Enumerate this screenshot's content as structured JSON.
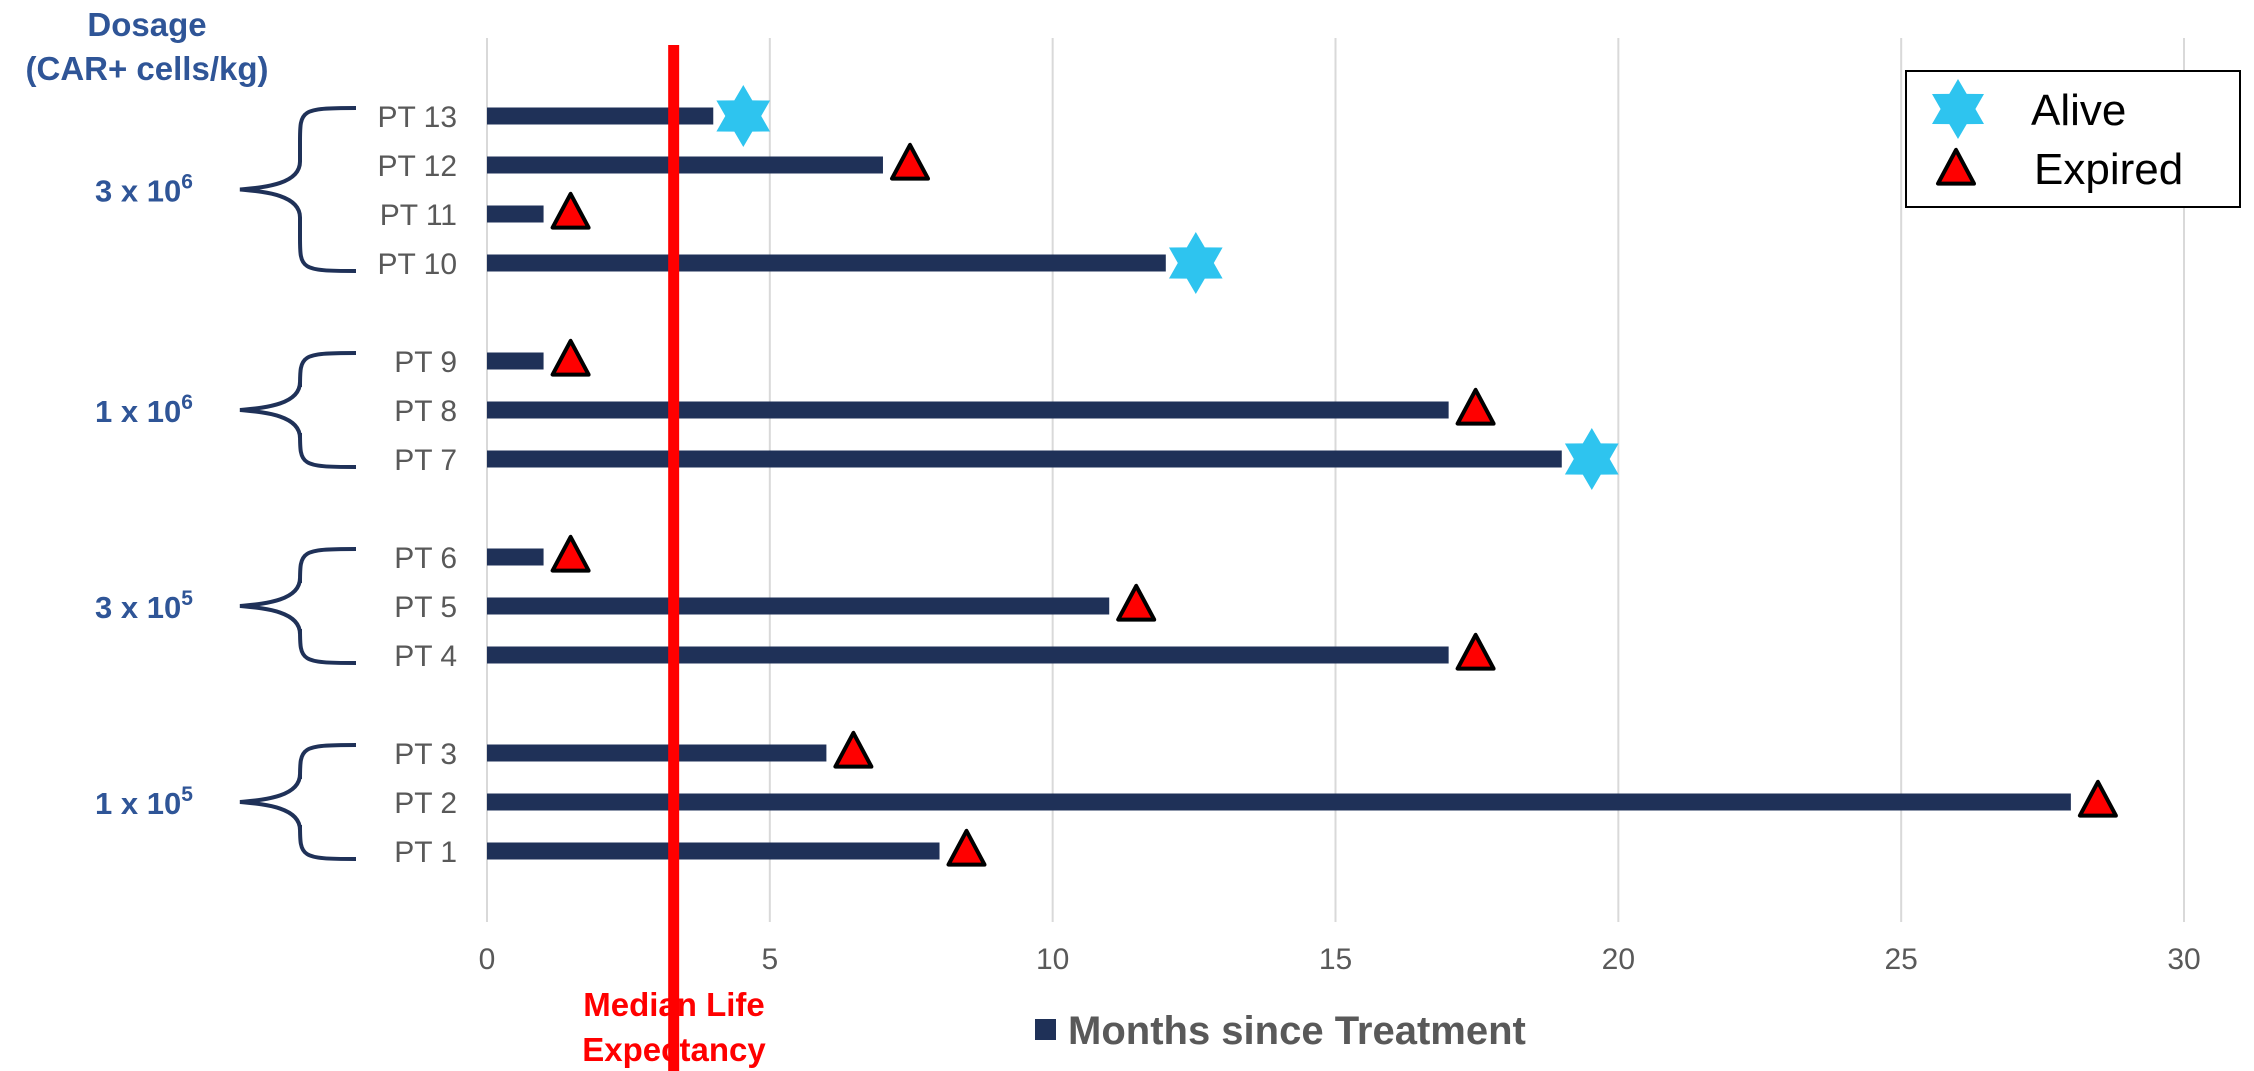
{
  "chart_data": {
    "type": "bar",
    "orientation": "horizontal",
    "title": "",
    "xlabel": "Months since Treatment",
    "xlim": [
      0,
      30
    ],
    "xticks": [
      0,
      5,
      10,
      15,
      20,
      25,
      30
    ],
    "grid": true,
    "legend_position": "top-right",
    "series": [
      {
        "name": "Months since Treatment",
        "color": "#1f3158"
      }
    ],
    "patients": [
      {
        "label": "PT 13",
        "months": 4,
        "status": "alive"
      },
      {
        "label": "PT 12",
        "months": 7,
        "status": "expired"
      },
      {
        "label": "PT 11",
        "months": 1,
        "status": "expired"
      },
      {
        "label": "PT 10",
        "months": 12,
        "status": "alive"
      },
      {
        "label": "PT 9",
        "months": 1,
        "status": "expired"
      },
      {
        "label": "PT 8",
        "months": 17,
        "status": "expired"
      },
      {
        "label": "PT 7",
        "months": 19,
        "status": "alive"
      },
      {
        "label": "PT 6",
        "months": 1,
        "status": "expired"
      },
      {
        "label": "PT 5",
        "months": 11,
        "status": "expired"
      },
      {
        "label": "PT 4",
        "months": 17,
        "status": "expired"
      },
      {
        "label": "PT 3",
        "months": 6,
        "status": "expired"
      },
      {
        "label": "PT 2",
        "months": 28,
        "status": "expired"
      },
      {
        "label": "PT 1",
        "months": 8,
        "status": "expired"
      }
    ],
    "dosage_title_line1": "Dosage",
    "dosage_title_line2": "(CAR+ cells/kg)",
    "dosage_groups": [
      {
        "base": "3 x 10",
        "exponent": "6",
        "members": [
          "PT 13",
          "PT 12",
          "PT 11",
          "PT 10"
        ]
      },
      {
        "base": "1 x 10",
        "exponent": "6",
        "members": [
          "PT 9",
          "PT 8",
          "PT 7"
        ]
      },
      {
        "base": "3 x 10",
        "exponent": "5",
        "members": [
          "PT 6",
          "PT 5",
          "PT 4"
        ]
      },
      {
        "base": "1 x 10",
        "exponent": "5",
        "members": [
          "PT 3",
          "PT 2",
          "PT 1"
        ]
      }
    ],
    "median_life_expectancy": {
      "value": 3.3,
      "label_line1": "Median Life",
      "label_line2": "Expectancy",
      "color": "#ff0000"
    },
    "legend": [
      {
        "label": "Alive",
        "marker": "star",
        "color": "#2ec4ef"
      },
      {
        "label": "Expired",
        "marker": "triangle",
        "color": "#ff0000"
      }
    ],
    "colors": {
      "bar": "#1f3158",
      "alive_marker": "#2ec4ef",
      "expired_marker": "#ff0000",
      "dosage_text": "#2f5597",
      "grid": "#d9d9d9"
    }
  }
}
